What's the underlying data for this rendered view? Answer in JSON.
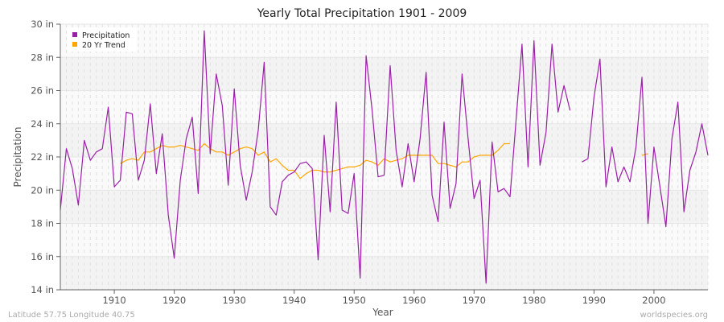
{
  "chart_data": {
    "type": "line",
    "title": "Yearly Total Precipitation 1901 - 2009",
    "xlabel": "Year",
    "ylabel": "Precipitation",
    "xlim": [
      1901,
      2009
    ],
    "ylim": [
      14,
      30
    ],
    "x_ticks": [
      "1910",
      "1920",
      "1930",
      "1940",
      "1950",
      "1960",
      "1970",
      "1980",
      "1990",
      "2000"
    ],
    "y_ticks": [
      "14 in",
      "16 in",
      "18 in",
      "20 in",
      "22 in",
      "24 in",
      "26 in",
      "28 in",
      "30 in"
    ],
    "grid": true,
    "legend_position": "top-left",
    "start_year": 1901,
    "series": [
      {
        "name": "Precipitation",
        "color": "#9b1fa8",
        "values": [
          18.8,
          22.5,
          21.3,
          19.1,
          23.0,
          21.8,
          22.3,
          22.5,
          25.0,
          20.2,
          20.6,
          24.7,
          24.6,
          20.6,
          21.8,
          25.2,
          21.0,
          23.4,
          18.5,
          15.9,
          20.6,
          23.1,
          24.4,
          19.8,
          29.6,
          22.2,
          27.0,
          25.1,
          20.3,
          26.1,
          21.5,
          19.4,
          21.1,
          23.6,
          27.7,
          19.0,
          18.5,
          20.5,
          20.9,
          21.1,
          21.6,
          21.7,
          21.3,
          15.8,
          23.3,
          18.7,
          25.3,
          18.8,
          18.6,
          21.0,
          14.7,
          28.1,
          24.8,
          20.8,
          20.9,
          27.5,
          22.4,
          20.2,
          22.8,
          20.5,
          23.1,
          27.1,
          19.7,
          18.1,
          24.1,
          18.9,
          20.4,
          27.0,
          23.1,
          19.5,
          20.6,
          14.4,
          22.9,
          19.9,
          20.1,
          19.6,
          24.2,
          28.8,
          21.4,
          29.0,
          21.5,
          23.5,
          28.8,
          24.7,
          26.3,
          24.8,
          null,
          21.7,
          21.9,
          25.6,
          27.9,
          20.2,
          22.6,
          20.5,
          21.4,
          20.5,
          22.6,
          26.8,
          18.0,
          22.6,
          20.2,
          17.8,
          23.1,
          25.3,
          18.7,
          21.2,
          22.3,
          24.0,
          22.1
        ]
      },
      {
        "name": "20 Yr Trend",
        "color": "#ffa500",
        "values": [
          null,
          null,
          null,
          null,
          null,
          null,
          null,
          null,
          null,
          null,
          21.6,
          21.8,
          21.9,
          21.8,
          22.3,
          22.3,
          22.5,
          22.7,
          22.6,
          22.6,
          22.7,
          22.6,
          22.5,
          22.4,
          22.8,
          22.5,
          22.3,
          22.3,
          22.1,
          22.3,
          22.5,
          22.6,
          22.5,
          22.1,
          22.3,
          21.7,
          21.9,
          21.5,
          21.2,
          21.2,
          20.7,
          21.0,
          21.2,
          21.2,
          21.1,
          21.1,
          21.2,
          21.3,
          21.4,
          21.4,
          21.5,
          21.8,
          21.7,
          21.5,
          21.9,
          21.7,
          21.8,
          21.9,
          22.1,
          22.1,
          22.1,
          22.1,
          22.1,
          21.6,
          21.6,
          21.5,
          21.4,
          21.7,
          21.7,
          22.0,
          22.1,
          22.1,
          22.1,
          22.4,
          22.8,
          22.8,
          null,
          null,
          null,
          null,
          null,
          null,
          null,
          null,
          null,
          null,
          null,
          null,
          null,
          null,
          null,
          null,
          null,
          null,
          null,
          null,
          null,
          22.1,
          22.2,
          null,
          null,
          null,
          null,
          null,
          null,
          null,
          null,
          null,
          null
        ]
      }
    ]
  },
  "footer": {
    "location": "Latitude 57.75 Longitude 40.75",
    "source": "worldspecies.org"
  }
}
